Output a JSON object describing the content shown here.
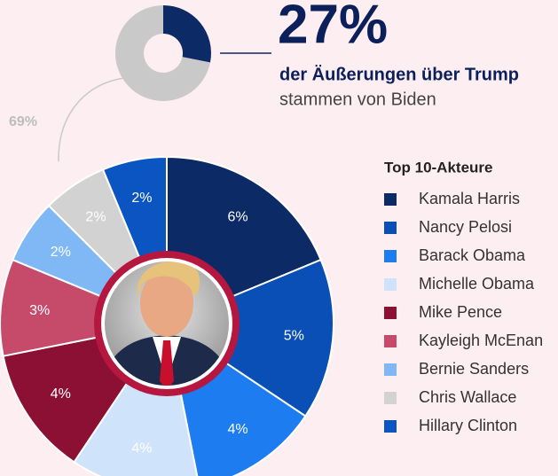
{
  "chart_data": [
    {
      "type": "donut",
      "values": [
        27,
        69
      ],
      "value_labels": [
        "27%",
        "69%"
      ],
      "colors": [
        "#0b2a66",
        "#c9c9c9"
      ],
      "headline": "der Äußerungen über Trump",
      "subline": "stammen von Biden"
    },
    {
      "type": "donut",
      "title": "Top 10-Akteure",
      "categories": [
        "Kamala Harris",
        "Nancy Pelosi",
        "Barack Obama",
        "Michelle Obama",
        "Mike Pence",
        "Kayleigh McEnan",
        "Bernie Sanders",
        "Chris Wallace",
        "Hillary Clinton"
      ],
      "values": [
        6,
        5,
        4,
        4,
        4,
        3,
        2,
        2,
        2
      ],
      "value_labels": [
        "6%",
        "5%",
        "4%",
        "4%",
        "4%",
        "3%",
        "2%",
        "2%",
        "2%"
      ],
      "colors": [
        "#0b2a66",
        "#0a4fb5",
        "#1c7cf0",
        "#cfe3fb",
        "#8c1034",
        "#c64b6b",
        "#80b8f5",
        "#d2d2d2",
        "#0a55c2"
      ]
    }
  ]
}
